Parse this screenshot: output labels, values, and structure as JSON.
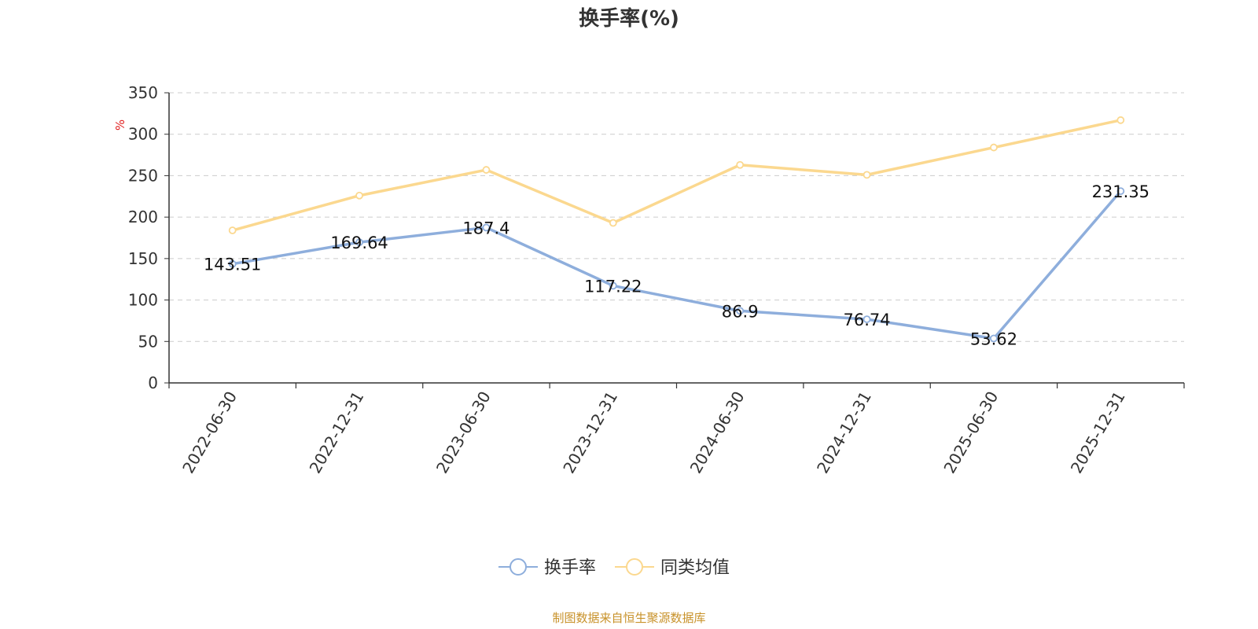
{
  "colors": {
    "series_blue": "#8eaedc",
    "series_yellow": "#fbd88f",
    "unit_red": "#e02020",
    "source_gold": "#c8922a",
    "grid": "#cccccc",
    "axis": "#333333"
  },
  "chart_data": {
    "type": "line",
    "title": "换手率(%)",
    "ylabel": "%",
    "ylim": [
      0,
      350
    ],
    "yticks": [
      0,
      50,
      100,
      150,
      200,
      250,
      300,
      350
    ],
    "grid": true,
    "legend_position": "bottom-center",
    "categories": [
      "2022-06-30",
      "2022-12-31",
      "2023-06-30",
      "2023-12-31",
      "2024-06-30",
      "2024-12-31",
      "2025-06-30",
      "2025-12-31"
    ],
    "series": [
      {
        "name": "换手率",
        "color": "#8eaedc",
        "values": [
          143.51,
          169.64,
          187.4,
          117.22,
          86.9,
          76.74,
          53.62,
          231.35
        ],
        "labels": [
          "143.51",
          "169.64",
          "187.4",
          "117.22",
          "86.9",
          "76.74",
          "53.62",
          "231.35"
        ]
      },
      {
        "name": "同类均值",
        "color": "#fbd88f",
        "values": [
          184,
          226,
          257,
          193,
          263,
          251,
          284,
          317
        ]
      }
    ],
    "source": "制图数据来自恒生聚源数据库"
  }
}
